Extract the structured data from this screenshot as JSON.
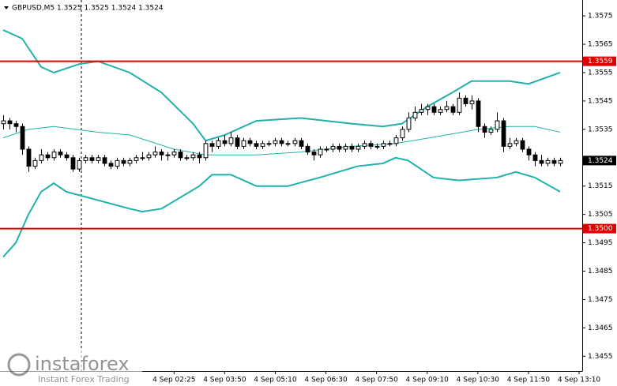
{
  "chart_data": {
    "type": "candlestick",
    "title": "GBPUSD,M5  1.3525 1.3525 1.3524 1.3524",
    "open": [
      1.3537,
      1.3538,
      1.3537,
      1.3536,
      1.3528,
      1.3522,
      1.3524,
      1.3526,
      1.3525,
      1.3527,
      1.3526,
      1.3525,
      1.3521,
      1.3524,
      1.3525,
      1.3524,
      1.3525,
      1.3523,
      1.3522,
      1.3524,
      1.3523,
      1.3524,
      1.3525,
      1.3525,
      1.3526,
      1.3527,
      1.3526,
      1.3526,
      1.3527,
      1.3525,
      1.3525,
      1.3526,
      1.3525,
      1.353,
      1.3529,
      1.3531,
      1.353,
      1.3532,
      1.3529,
      1.3531,
      1.353,
      1.3529,
      1.353,
      1.353,
      1.3531,
      1.353,
      1.353,
      1.3531,
      1.3529,
      1.3527,
      1.3526,
      1.3528,
      1.3528,
      1.3529,
      1.3528,
      1.3529,
      1.3528,
      1.3529,
      1.353,
      1.3529,
      1.3529,
      1.353,
      1.353,
      1.3532,
      1.3535,
      1.3539,
      1.3541,
      1.3542,
      1.3543,
      1.3541,
      1.3542,
      1.3543,
      1.3541,
      1.3546,
      1.3544,
      1.3545,
      1.3536,
      1.3534,
      1.3535,
      1.3538,
      1.3529,
      1.353,
      1.3531,
      1.3528,
      1.3526,
      1.3524,
      1.3523,
      1.3524,
      1.3523
    ],
    "high": [
      1.354,
      1.3539,
      1.3538,
      1.3537,
      1.3529,
      1.3525,
      1.3528,
      1.3527,
      1.3528,
      1.3528,
      1.3527,
      1.3526,
      1.3525,
      1.3526,
      1.3526,
      1.3526,
      1.3526,
      1.3524,
      1.3525,
      1.3525,
      1.3525,
      1.3526,
      1.3527,
      1.3527,
      1.3529,
      1.3528,
      1.3527,
      1.3528,
      1.3528,
      1.3526,
      1.3527,
      1.3527,
      1.3531,
      1.3531,
      1.3532,
      1.3533,
      1.3534,
      1.3533,
      1.3532,
      1.3532,
      1.3531,
      1.3531,
      1.3531,
      1.3532,
      1.3532,
      1.3531,
      1.3532,
      1.3532,
      1.353,
      1.3528,
      1.3529,
      1.3529,
      1.353,
      1.353,
      1.353,
      1.353,
      1.353,
      1.3531,
      1.3531,
      1.353,
      1.3531,
      1.3531,
      1.3533,
      1.3536,
      1.3541,
      1.3543,
      1.3544,
      1.3544,
      1.3544,
      1.3543,
      1.3545,
      1.3544,
      1.3548,
      1.3547,
      1.3547,
      1.3546,
      1.3537,
      1.3536,
      1.3541,
      1.3539,
      1.3532,
      1.3532,
      1.3532,
      1.3529,
      1.3527,
      1.3526,
      1.3525,
      1.3525,
      1.3525
    ],
    "low": [
      1.3535,
      1.3535,
      1.3534,
      1.3526,
      1.352,
      1.3521,
      1.3523,
      1.3524,
      1.3524,
      1.3525,
      1.3524,
      1.352,
      1.352,
      1.3523,
      1.3523,
      1.3523,
      1.3522,
      1.3521,
      1.3521,
      1.3522,
      1.3522,
      1.3523,
      1.3524,
      1.3524,
      1.3525,
      1.3524,
      1.3524,
      1.3525,
      1.3524,
      1.3524,
      1.3524,
      1.3523,
      1.3524,
      1.3527,
      1.3528,
      1.3529,
      1.3529,
      1.3528,
      1.3528,
      1.3529,
      1.3528,
      1.3528,
      1.3529,
      1.3529,
      1.3529,
      1.3529,
      1.3529,
      1.3528,
      1.3526,
      1.3524,
      1.3525,
      1.3527,
      1.3527,
      1.3527,
      1.3527,
      1.3527,
      1.3527,
      1.3528,
      1.3528,
      1.3528,
      1.3528,
      1.3529,
      1.3529,
      1.3531,
      1.3534,
      1.3538,
      1.354,
      1.354,
      1.354,
      1.354,
      1.3541,
      1.354,
      1.354,
      1.3543,
      1.3542,
      1.3534,
      1.3532,
      1.3533,
      1.3534,
      1.3527,
      1.3528,
      1.3529,
      1.3527,
      1.3524,
      1.3522,
      1.3522,
      1.3522,
      1.3522,
      1.3522
    ],
    "close": [
      1.3538,
      1.3537,
      1.3536,
      1.3528,
      1.3522,
      1.3524,
      1.3526,
      1.3525,
      1.3527,
      1.3526,
      1.3525,
      1.3521,
      1.3524,
      1.3525,
      1.3524,
      1.3525,
      1.3523,
      1.3522,
      1.3524,
      1.3523,
      1.3524,
      1.3525,
      1.3525,
      1.3526,
      1.3527,
      1.3526,
      1.3526,
      1.3527,
      1.3525,
      1.3525,
      1.3526,
      1.3525,
      1.353,
      1.3529,
      1.3531,
      1.353,
      1.3532,
      1.3529,
      1.3531,
      1.353,
      1.3529,
      1.353,
      1.353,
      1.3531,
      1.353,
      1.353,
      1.3531,
      1.3529,
      1.3527,
      1.3526,
      1.3528,
      1.3528,
      1.3529,
      1.3528,
      1.3529,
      1.3528,
      1.3529,
      1.353,
      1.3529,
      1.3529,
      1.353,
      1.353,
      1.3532,
      1.3535,
      1.3539,
      1.3541,
      1.3542,
      1.3543,
      1.3541,
      1.3542,
      1.3543,
      1.3541,
      1.3546,
      1.3544,
      1.3545,
      1.3536,
      1.3534,
      1.3535,
      1.3538,
      1.3529,
      1.353,
      1.3531,
      1.3528,
      1.3526,
      1.3524,
      1.3523,
      1.3524,
      1.3523,
      1.3524
    ],
    "series": [
      {
        "color": "#20b2aa",
        "x": [
          0,
          3,
          6,
          8,
          12,
          15,
          20,
          25,
          30,
          32,
          35,
          40,
          47,
          55,
          60,
          63,
          67,
          71,
          74,
          80,
          83,
          88
        ],
        "values": [
          1.357,
          1.3567,
          1.3557,
          1.3555,
          1.3558,
          1.3559,
          1.3555,
          1.3548,
          1.3537,
          1.3531,
          1.3533,
          1.3538,
          1.3539,
          1.3537,
          1.3536,
          1.3537,
          1.3543,
          1.3548,
          1.3552,
          1.3552,
          1.3551,
          1.3555
        ]
      },
      {
        "color": "#20b2aa",
        "x": [
          0,
          4,
          8,
          15,
          20,
          27,
          32,
          40,
          47,
          55,
          62,
          70,
          75,
          80,
          84,
          88
        ],
        "values": [
          1.3532,
          1.3535,
          1.3536,
          1.3534,
          1.3533,
          1.3528,
          1.3526,
          1.3526,
          1.3527,
          1.3529,
          1.353,
          1.3533,
          1.3535,
          1.3536,
          1.3536,
          1.3534
        ]
      },
      {
        "color": "#20b2aa",
        "x": [
          0,
          2,
          4,
          6,
          8,
          10,
          15,
          20,
          22,
          25,
          28,
          31,
          33,
          36,
          40,
          45,
          50,
          56,
          60,
          62,
          64,
          68,
          72,
          78,
          81,
          84,
          88
        ],
        "values": [
          1.349,
          1.3495,
          1.3505,
          1.3513,
          1.3516,
          1.3513,
          1.351,
          1.3507,
          1.3506,
          1.3507,
          1.3511,
          1.3515,
          1.3519,
          1.3519,
          1.3515,
          1.3515,
          1.3518,
          1.3522,
          1.3523,
          1.3525,
          1.3524,
          1.3518,
          1.3517,
          1.3518,
          1.352,
          1.3518,
          1.3513
        ]
      }
    ],
    "hlines": [
      {
        "value": 1.3559,
        "color": "#e00000"
      },
      {
        "value": 1.35,
        "label": "1.3500",
        "color": "#e00000"
      }
    ],
    "last_price": 1.3524,
    "xlim": [
      -0.5,
      91.5
    ],
    "xticks": [
      {
        "value": 27,
        "label": "4 Sep 02:25"
      },
      {
        "value": 35,
        "label": "4 Sep 03:50"
      },
      {
        "value": 43,
        "label": "4 Sep 05:10"
      },
      {
        "value": 51,
        "label": "4 Sep 06:30"
      },
      {
        "value": 59,
        "label": "4 Sep 07:50"
      },
      {
        "value": 67,
        "label": "4 Sep 09:10"
      },
      {
        "value": 75,
        "label": "4 Sep 10:30"
      },
      {
        "value": 83,
        "label": "4 Sep 11:50"
      },
      {
        "value": 91,
        "label": "4 Sep 13:10"
      }
    ],
    "ylim": [
      1.34498,
      1.35806
    ],
    "yticks": [
      1.3575,
      1.3565,
      1.3555,
      1.3545,
      1.3535,
      1.3515,
      1.3505,
      1.3495,
      1.3485,
      1.3475,
      1.3465,
      1.3455
    ]
  },
  "watermark": {
    "brand": "instaforex",
    "tagline": "Instant Forex Trading"
  }
}
